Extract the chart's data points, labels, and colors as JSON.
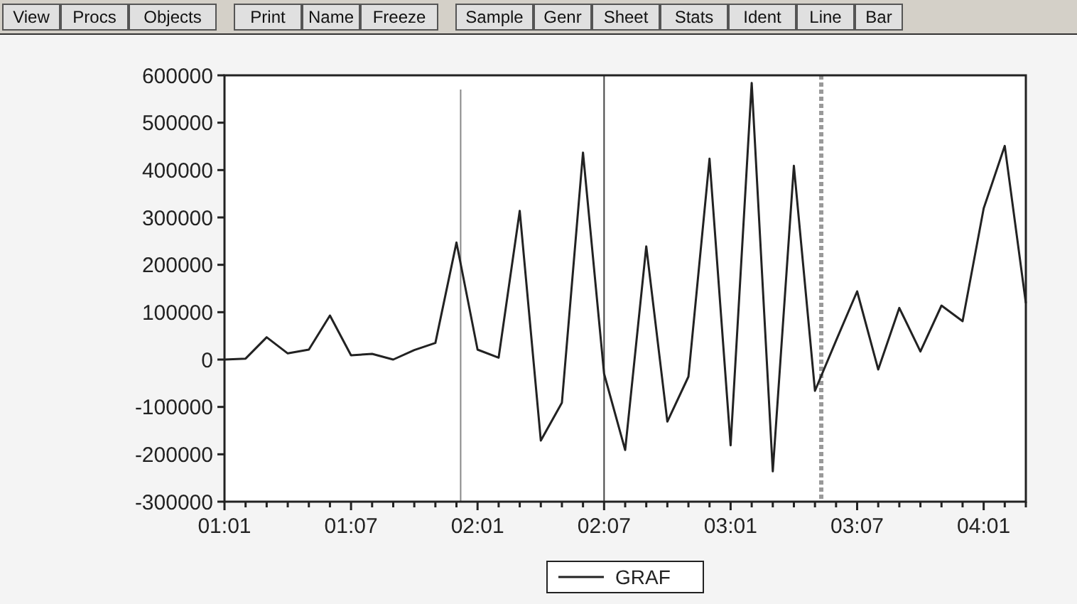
{
  "chart_data": {
    "type": "line",
    "categories": [
      "01:01",
      null,
      null,
      null,
      null,
      null,
      "01:07",
      null,
      null,
      null,
      null,
      null,
      "02:01",
      null,
      null,
      null,
      null,
      null,
      "02:07",
      null,
      null,
      null,
      null,
      null,
      "03:01",
      null,
      null,
      null,
      null,
      null,
      "03:07",
      null,
      null,
      null,
      null,
      null,
      "04:01",
      null,
      null
    ],
    "series": [
      {
        "name": "GRAF",
        "color": "#222222",
        "values": [
          0,
          2000,
          47000,
          13000,
          21000,
          93000,
          9000,
          12000,
          0,
          20000,
          35000,
          247000,
          21000,
          4000,
          314000,
          -171000,
          -91000,
          437000,
          -30000,
          -191000,
          239000,
          -131000,
          -36000,
          424000,
          -181000,
          584000,
          -236000,
          409000,
          -66000,
          40000,
          144000,
          -21000,
          109000,
          17000,
          114000,
          81000,
          319000,
          451000,
          119000
        ]
      }
    ],
    "ylim": [
      -300000,
      600000
    ],
    "yticks": [
      -300000,
      -200000,
      -100000,
      0,
      100000,
      200000,
      300000,
      400000,
      500000,
      600000
    ],
    "ref_lines": [
      {
        "axis": "x",
        "value": "02:07",
        "color": "#444444",
        "line_style": "solid"
      }
    ],
    "legend": "bottom",
    "grid": false,
    "annotations": [
      "View",
      "Procs",
      "Objects",
      "Print",
      "Name",
      "Freeze",
      "Sample",
      "Genr",
      "Sheet",
      "Stats",
      "Ident",
      "Line",
      "Bar"
    ]
  }
}
